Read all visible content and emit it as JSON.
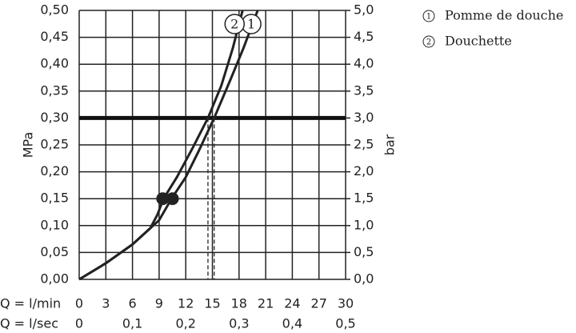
{
  "chart_data": {
    "type": "line",
    "x_label": "Q = l/min",
    "x2_label": "Q = l/sec",
    "y_label": "MPa",
    "y2_label": "bar",
    "xlim": [
      0,
      30
    ],
    "xticks": [
      0,
      3,
      6,
      9,
      12,
      15,
      18,
      21,
      24,
      27,
      30
    ],
    "x2lim": [
      0,
      0.5
    ],
    "x2ticks": [
      0,
      {
        "value": 0.1,
        "label": "0,1"
      },
      {
        "value": 0.2,
        "label": "0,2"
      },
      {
        "value": 0.3,
        "label": "0,3"
      },
      {
        "value": 0.4,
        "label": "0,4"
      },
      {
        "value": 0.5,
        "label": "0,5"
      }
    ],
    "ylim": [
      0,
      0.5
    ],
    "yticks": [
      {
        "value": 0,
        "label": "0,00"
      },
      {
        "value": 0.05,
        "label": "0,05"
      },
      {
        "value": 0.1,
        "label": "0,10"
      },
      {
        "value": 0.15,
        "label": "0,15"
      },
      {
        "value": 0.2,
        "label": "0,20"
      },
      {
        "value": 0.25,
        "label": "0,25"
      },
      {
        "value": 0.3,
        "label": "0,30"
      },
      {
        "value": 0.35,
        "label": "0,35"
      },
      {
        "value": 0.4,
        "label": "0,40"
      },
      {
        "value": 0.45,
        "label": "0,45"
      },
      {
        "value": 0.5,
        "label": "0,50"
      }
    ],
    "y2lim": [
      0,
      5
    ],
    "y2ticks": [
      {
        "value": 0,
        "label": "0,0"
      },
      {
        "value": 0.5,
        "label": "0,5"
      },
      {
        "value": 1,
        "label": "1,0"
      },
      {
        "value": 1.5,
        "label": "1,5"
      },
      {
        "value": 2,
        "label": "2,0"
      },
      {
        "value": 2.5,
        "label": "2,5"
      },
      {
        "value": 3,
        "label": "3,0"
      },
      {
        "value": 3.5,
        "label": "3,5"
      },
      {
        "value": 4,
        "label": "4,0"
      },
      {
        "value": 4.5,
        "label": "4,5"
      },
      {
        "value": 5,
        "label": "5,0"
      }
    ],
    "grid": true,
    "reference_y": 0.3,
    "series": [
      {
        "name": "Pomme de douche",
        "marker_label": "1",
        "color": "#222",
        "x": [
          0,
          3,
          6,
          8,
          9,
          10.4,
          12,
          13.5,
          15.2,
          17,
          18.5,
          20.1
        ],
        "values": [
          0,
          0.03,
          0.065,
          0.095,
          0.11,
          0.15,
          0.19,
          0.24,
          0.3,
          0.37,
          0.43,
          0.5
        ],
        "dot": {
          "x": 10.5,
          "y": 0.15
        },
        "operating_x": 15.2
      },
      {
        "name": "Douchette",
        "marker_label": "2",
        "color": "#222",
        "x": [
          0,
          3,
          6,
          8,
          8.8,
          9.5,
          11,
          12.8,
          14.5,
          16,
          17.3,
          18.4
        ],
        "values": [
          0,
          0.03,
          0.065,
          0.095,
          0.12,
          0.15,
          0.19,
          0.245,
          0.3,
          0.36,
          0.43,
          0.5
        ],
        "dot": {
          "x": 9.4,
          "y": 0.15
        },
        "operating_x": 14.5
      }
    ]
  }
}
